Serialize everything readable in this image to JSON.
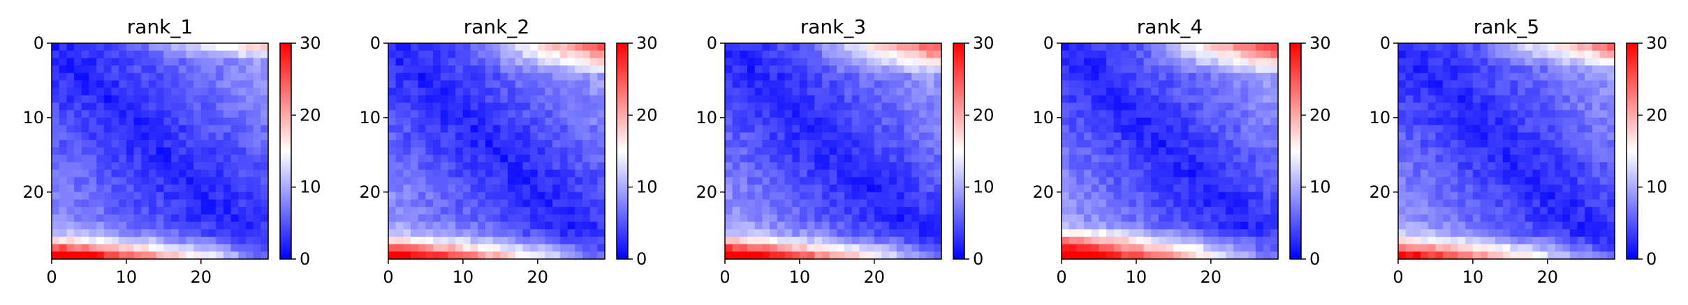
{
  "figure": {
    "colormap": "bwr",
    "colormap_stops": [
      "#0000ff",
      "#ffffff",
      "#ff0000"
    ]
  },
  "chart_data": [
    {
      "type": "heatmap",
      "title": "rank_1",
      "matrix_size": 29,
      "x_ticks": [
        0,
        10,
        20
      ],
      "y_ticks": [
        0,
        10,
        20
      ],
      "colorbar_ticks": [
        0,
        10,
        20,
        30
      ],
      "vmin": 0,
      "vmax": 30,
      "pattern": {
        "base": 2,
        "dist_scale": 0.28,
        "top_boost": 10,
        "bottom_boost": 24,
        "hot_bottom_rows": [
          26,
          27,
          28
        ],
        "hot_top_rows": [
          0,
          1
        ]
      },
      "description_values": "symmetric-like distance matrix; values near 0 on diagonal, rising to ~28 in bottom rows"
    },
    {
      "type": "heatmap",
      "title": "rank_2",
      "matrix_size": 29,
      "x_ticks": [
        0,
        10,
        20
      ],
      "y_ticks": [
        0,
        10,
        20
      ],
      "colorbar_ticks": [
        0,
        10,
        20,
        30
      ],
      "vmin": 0,
      "vmax": 30,
      "pattern": {
        "base": 2,
        "dist_scale": 0.3,
        "top_boost": 16,
        "bottom_boost": 22,
        "hot_bottom_rows": [
          26,
          27,
          28
        ],
        "hot_top_rows": [
          0,
          1,
          2,
          3
        ]
      }
    },
    {
      "type": "heatmap",
      "title": "rank_3",
      "matrix_size": 29,
      "x_ticks": [
        0,
        10,
        20
      ],
      "y_ticks": [
        0,
        10,
        20
      ],
      "colorbar_ticks": [
        0,
        10,
        20,
        30
      ],
      "vmin": 0,
      "vmax": 30,
      "pattern": {
        "base": 2,
        "dist_scale": 0.3,
        "top_boost": 16,
        "bottom_boost": 24,
        "hot_bottom_rows": [
          26,
          27,
          28
        ],
        "hot_top_rows": [
          0,
          1,
          2,
          3
        ]
      }
    },
    {
      "type": "heatmap",
      "title": "rank_4",
      "matrix_size": 29,
      "x_ticks": [
        0,
        10,
        20
      ],
      "y_ticks": [
        0,
        10,
        20
      ],
      "colorbar_ticks": [
        0,
        10,
        20,
        30
      ],
      "vmin": 0,
      "vmax": 30,
      "pattern": {
        "base": 2,
        "dist_scale": 0.32,
        "top_boost": 17,
        "bottom_boost": 24,
        "hot_bottom_rows": [
          25,
          26,
          27,
          28
        ],
        "hot_top_rows": [
          0,
          1,
          2,
          3
        ]
      }
    },
    {
      "type": "heatmap",
      "title": "rank_5",
      "matrix_size": 29,
      "x_ticks": [
        0,
        10,
        20
      ],
      "y_ticks": [
        0,
        10,
        20
      ],
      "colorbar_ticks": [
        0,
        10,
        20,
        30
      ],
      "vmin": 0,
      "vmax": 30,
      "pattern": {
        "base": 2,
        "dist_scale": 0.3,
        "top_boost": 14,
        "bottom_boost": 20,
        "hot_bottom_rows": [
          26,
          27,
          28
        ],
        "hot_top_rows": [
          0,
          1,
          2
        ]
      }
    }
  ]
}
